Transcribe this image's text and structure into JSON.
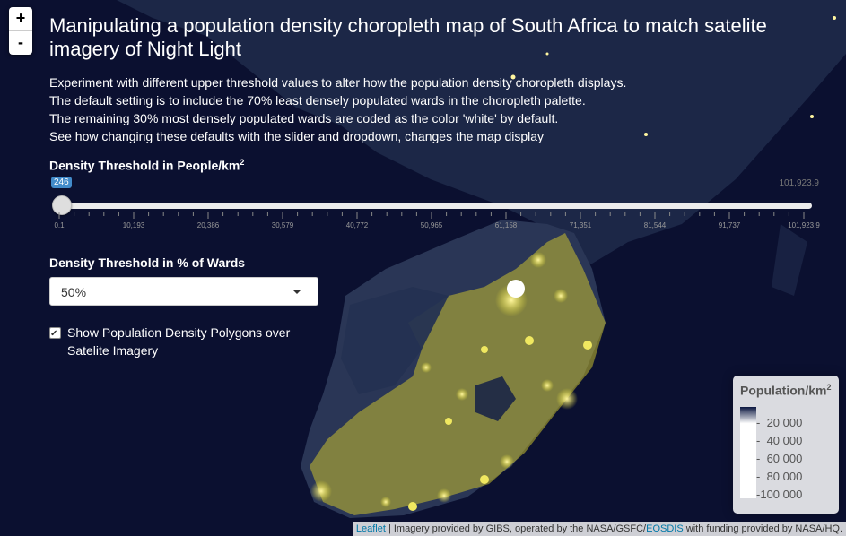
{
  "header": {
    "title": "Manipulating a population density choropleth map of South Africa to match satelite imagery of Night Light"
  },
  "description": [
    "Experiment with different upper threshold values to alter how the population density choropleth displays.",
    "The default setting is to include the 70% least densely populated wards in the choropleth palette.",
    "The remaining 30% most densely populated wards are coded as the color 'white' by default.",
    "See how changing these defaults with the slider and dropdown, changes the map display"
  ],
  "zoom": {
    "in_label": "+",
    "out_label": "-"
  },
  "slider": {
    "label": "Density Threshold in People/km",
    "label_sup": "2",
    "current_value": "246",
    "max_value": "101,923.9",
    "min": 0.1,
    "max": 101923.9,
    "value": 246,
    "tick_labels": [
      "0.1",
      "10,193",
      "20,386",
      "30,579",
      "40,772",
      "50,965",
      "61,158",
      "71,351",
      "81,544",
      "91,737",
      "101,923.9"
    ]
  },
  "dropdown": {
    "label": "Density Threshold in % of Wards",
    "selected": "50%"
  },
  "checkbox": {
    "label": "Show Population Density Polygons over Satelite Imagery",
    "checked": true
  },
  "legend": {
    "title": "Population/km",
    "title_sup": "2",
    "ticks": [
      "20 000",
      "40 000",
      "60 000",
      "80 000",
      "100 000"
    ],
    "gradient_colors": [
      "#0a1640",
      "#ffffff"
    ]
  },
  "attribution": {
    "leaflet_link": "Leaflet",
    "text1": " | Imagery provided by GIBS, operated by the NASA/GSFC/",
    "eosdis_link": "EOSDIS",
    "text2": " with funding provided by NASA/HQ."
  },
  "map": {
    "background_color": "#0b1030",
    "land_color": "#23304f",
    "highlight_color": "#e8e030"
  }
}
